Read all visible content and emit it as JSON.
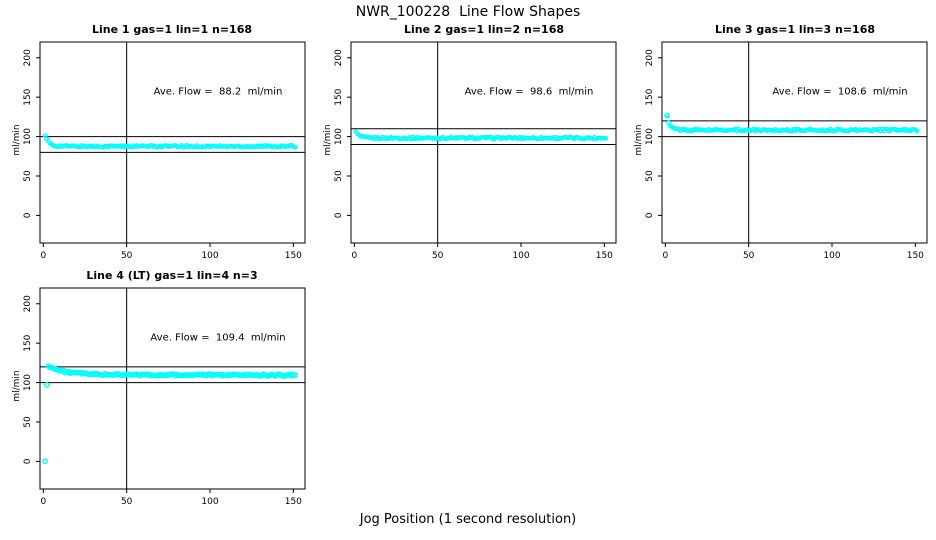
{
  "page_title": "NWR_100228  Line Flow Shapes",
  "xlabel": "Jog Position (1 second resolution)",
  "colors": {
    "points": "#00FFFF",
    "axis": "#000000",
    "background": "#FFFFFF"
  },
  "chart_data": [
    {
      "type": "scatter",
      "title": "Line 1 gas=1 lin=1 n=168",
      "gas": 1,
      "lin": 1,
      "n": 168,
      "annotation": "Ave. Flow =  88.2  ml/min",
      "ave_flow_ml_min": 88.2,
      "ylabel": "ml/min",
      "x_ticks": [
        0,
        50,
        100,
        150
      ],
      "y_ticks": [
        0,
        50,
        100,
        150,
        200
      ],
      "xlim": [
        -2,
        157
      ],
      "ylim": [
        -35,
        220
      ],
      "ref_hlines": [
        80,
        100
      ],
      "ref_vline": 50,
      "band_halfwidth": 1.3,
      "point_radius": 1.7,
      "mean_curve": [
        [
          1,
          100.5
        ],
        [
          2,
          96.3
        ],
        [
          3,
          93.4
        ],
        [
          4,
          91.3
        ],
        [
          5,
          89.9
        ],
        [
          6,
          89.0
        ],
        [
          7,
          88.5
        ],
        [
          8,
          88.2
        ],
        [
          9,
          88.0
        ],
        [
          10,
          87.9
        ],
        [
          12,
          87.8
        ],
        [
          15,
          87.7
        ],
        [
          20,
          87.6
        ],
        [
          30,
          87.6
        ],
        [
          50,
          87.6
        ],
        [
          80,
          87.6
        ],
        [
          120,
          87.6
        ],
        [
          151,
          87.6
        ]
      ],
      "outliers": []
    },
    {
      "type": "scatter",
      "title": "Line 2 gas=1 lin=2 n=168",
      "gas": 1,
      "lin": 2,
      "n": 168,
      "annotation": "Ave. Flow =  98.6  ml/min",
      "ave_flow_ml_min": 98.6,
      "ylabel": "ml/min",
      "x_ticks": [
        0,
        50,
        100,
        150
      ],
      "y_ticks": [
        0,
        50,
        100,
        150,
        200
      ],
      "xlim": [
        -2,
        157
      ],
      "ylim": [
        -35,
        220
      ],
      "ref_hlines": [
        90,
        110
      ],
      "ref_vline": 50,
      "band_halfwidth": 1.3,
      "point_radius": 1.7,
      "mean_curve": [
        [
          1,
          105.5
        ],
        [
          2,
          102.8
        ],
        [
          3,
          101.0
        ],
        [
          4,
          99.9
        ],
        [
          5,
          99.2
        ],
        [
          6,
          98.8
        ],
        [
          7,
          98.6
        ],
        [
          8,
          98.4
        ],
        [
          9,
          98.3
        ],
        [
          10,
          98.3
        ],
        [
          12,
          98.2
        ],
        [
          15,
          98.2
        ],
        [
          20,
          98.2
        ],
        [
          30,
          98.2
        ],
        [
          50,
          98.2
        ],
        [
          80,
          98.2
        ],
        [
          120,
          98.2
        ],
        [
          151,
          98.2
        ]
      ],
      "outliers": []
    },
    {
      "type": "scatter",
      "title": "Line 3 gas=1 lin=3 n=168",
      "gas": 1,
      "lin": 3,
      "n": 168,
      "annotation": "Ave. Flow =  108.6  ml/min",
      "ave_flow_ml_min": 108.6,
      "ylabel": "ml/min",
      "x_ticks": [
        0,
        50,
        100,
        150
      ],
      "y_ticks": [
        0,
        50,
        100,
        150,
        200
      ],
      "xlim": [
        -2,
        157
      ],
      "ylim": [
        -35,
        220
      ],
      "ref_hlines": [
        100,
        120
      ],
      "ref_vline": 50,
      "band_halfwidth": 1.4,
      "point_radius": 1.7,
      "mean_curve": [
        [
          1,
          126.5
        ],
        [
          2,
          117.0
        ],
        [
          3,
          113.2
        ],
        [
          4,
          111.2
        ],
        [
          5,
          110.1
        ],
        [
          6,
          109.5
        ],
        [
          7,
          109.1
        ],
        [
          8,
          108.8
        ],
        [
          9,
          108.6
        ],
        [
          10,
          108.5
        ],
        [
          12,
          108.4
        ],
        [
          15,
          108.3
        ],
        [
          20,
          108.3
        ],
        [
          30,
          108.3
        ],
        [
          50,
          108.3
        ],
        [
          80,
          108.3
        ],
        [
          120,
          108.3
        ],
        [
          151,
          108.3
        ]
      ],
      "outliers": [
        [
          1,
          126.5
        ]
      ]
    },
    {
      "type": "scatter",
      "title": "Line 4 (LT) gas=1 lin=4 n=3",
      "gas": 1,
      "lin": 4,
      "n": 3,
      "annotation": "Ave. Flow =  109.4  ml/min",
      "ave_flow_ml_min": 109.4,
      "ylabel": "ml/min",
      "x_ticks": [
        0,
        50,
        100,
        150
      ],
      "y_ticks": [
        0,
        50,
        100,
        150,
        200
      ],
      "xlim": [
        -2,
        157
      ],
      "ylim": [
        -35,
        220
      ],
      "ref_hlines": [
        100,
        120
      ],
      "ref_vline": 50,
      "band_halfwidth": 1.2,
      "point_radius": 2.2,
      "mean_curve": [
        [
          3,
          122.0
        ],
        [
          4,
          120.3
        ],
        [
          5,
          119.0
        ],
        [
          6,
          118.0
        ],
        [
          7,
          117.1
        ],
        [
          8,
          116.4
        ],
        [
          10,
          115.2
        ],
        [
          12,
          114.3
        ],
        [
          14,
          113.5
        ],
        [
          16,
          112.9
        ],
        [
          18,
          112.4
        ],
        [
          20,
          111.9
        ],
        [
          25,
          111.1
        ],
        [
          30,
          110.6
        ],
        [
          35,
          110.3
        ],
        [
          40,
          110.1
        ],
        [
          50,
          109.9
        ],
        [
          60,
          109.8
        ],
        [
          75,
          109.7
        ],
        [
          90,
          109.6
        ],
        [
          110,
          109.6
        ],
        [
          130,
          109.5
        ],
        [
          151,
          109.5
        ]
      ],
      "outliers": [
        [
          1,
          0
        ],
        [
          2,
          97
        ]
      ]
    }
  ]
}
